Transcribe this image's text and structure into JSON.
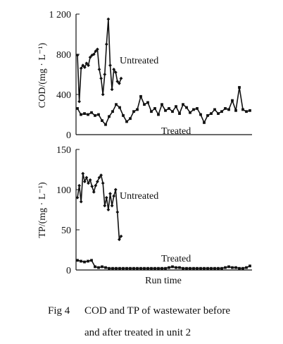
{
  "caption": {
    "number": "Fig 4",
    "line1": "COD and TP of wastewater before",
    "line2": "and after treated in unit 2"
  },
  "chart_data": [
    {
      "type": "line",
      "ylabel": "COD/(mg · L⁻¹)",
      "xlabel": "",
      "ylim": [
        0,
        1200
      ],
      "yticks": [
        0,
        400,
        800,
        1200
      ],
      "ytick_labels": [
        "0",
        "400",
        "800",
        "1 200"
      ],
      "xlim": [
        0,
        100
      ],
      "grid": false,
      "series": [
        {
          "name": "Untreated",
          "x": [
            1,
            2,
            3,
            4,
            5,
            6,
            7,
            8,
            9,
            10,
            11,
            12,
            13,
            14,
            15,
            16,
            17,
            18,
            19,
            20,
            21,
            22,
            23,
            24,
            25
          ],
          "y": [
            790,
            330,
            660,
            690,
            670,
            710,
            690,
            770,
            790,
            800,
            830,
            850,
            650,
            560,
            400,
            600,
            900,
            1150,
            690,
            450,
            650,
            620,
            530,
            510,
            560
          ]
        },
        {
          "name": "Treated",
          "x": [
            1,
            3,
            5,
            7,
            9,
            11,
            13,
            15,
            17,
            19,
            21,
            23,
            25,
            27,
            29,
            31,
            33,
            35,
            37,
            39,
            41,
            43,
            45,
            47,
            49,
            51,
            53,
            55,
            57,
            59,
            61,
            63,
            65,
            67,
            69,
            71,
            73,
            75,
            77,
            79,
            81,
            83,
            85,
            87,
            89,
            91,
            93,
            95,
            97,
            99
          ],
          "y": [
            260,
            200,
            210,
            200,
            220,
            190,
            200,
            140,
            100,
            180,
            230,
            300,
            270,
            190,
            130,
            160,
            230,
            250,
            380,
            300,
            320,
            230,
            260,
            200,
            300,
            240,
            260,
            230,
            280,
            210,
            300,
            270,
            220,
            250,
            260,
            200,
            120,
            190,
            210,
            250,
            210,
            230,
            260,
            250,
            340,
            240,
            470,
            250,
            230,
            240
          ]
        }
      ]
    },
    {
      "type": "line",
      "ylabel": "TP/(mg · L⁻¹)",
      "xlabel": "Run time",
      "ylim": [
        0,
        150
      ],
      "yticks": [
        0,
        50,
        100,
        150
      ],
      "ytick_labels": [
        "0",
        "50",
        "100",
        "150"
      ],
      "xlim": [
        0,
        100
      ],
      "grid": false,
      "series": [
        {
          "name": "Untreated",
          "x": [
            1,
            2,
            3,
            4,
            5,
            6,
            7,
            8,
            9,
            10,
            11,
            12,
            13,
            14,
            15,
            16,
            17,
            18,
            19,
            20,
            21,
            22,
            23,
            24,
            25
          ],
          "y": [
            90,
            105,
            85,
            120,
            110,
            115,
            108,
            112,
            104,
            97,
            105,
            110,
            115,
            118,
            108,
            80,
            90,
            75,
            95,
            80,
            92,
            100,
            72,
            38,
            42
          ]
        },
        {
          "name": "Treated",
          "x": [
            1,
            3,
            5,
            7,
            9,
            11,
            13,
            15,
            17,
            19,
            21,
            23,
            25,
            27,
            29,
            31,
            33,
            35,
            37,
            39,
            41,
            43,
            45,
            47,
            49,
            51,
            53,
            55,
            57,
            59,
            61,
            63,
            65,
            67,
            69,
            71,
            73,
            75,
            77,
            79,
            81,
            83,
            85,
            87,
            89,
            91,
            93,
            95,
            97,
            99
          ],
          "y": [
            12,
            11,
            10,
            11,
            12,
            4,
            3,
            4,
            3,
            2,
            2,
            2,
            2,
            2,
            2,
            2,
            2,
            2,
            2,
            2,
            2,
            2,
            2,
            2,
            2,
            2,
            3,
            4,
            3,
            3,
            2,
            2,
            2,
            2,
            2,
            2,
            2,
            2,
            2,
            2,
            2,
            2,
            3,
            4,
            3,
            3,
            2,
            2,
            3,
            5
          ]
        }
      ]
    }
  ]
}
